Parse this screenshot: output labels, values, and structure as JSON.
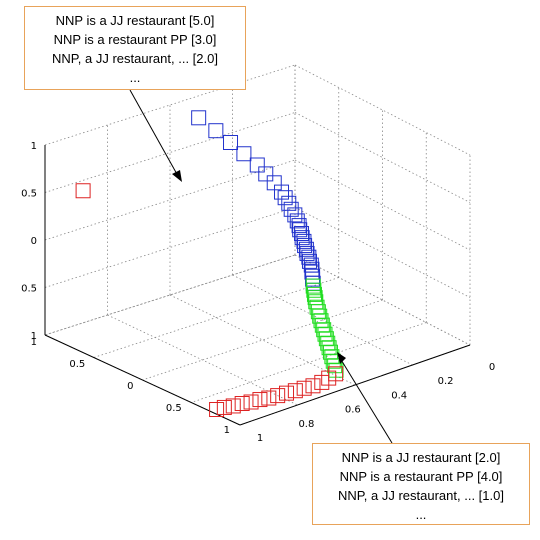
{
  "chart_data": {
    "type": "scatter3d",
    "title": "",
    "marker": "square",
    "grid": true,
    "x_ticks": [
      "0",
      "0.2",
      "0.4",
      "0.6",
      "0.8",
      "1"
    ],
    "y_ticks": [
      "1",
      "0.5",
      "0",
      "0.5",
      "1"
    ],
    "z_ticks": [
      "1",
      "0.5",
      "0",
      "0.5",
      "1"
    ],
    "series": [
      {
        "color": "#2233cc",
        "points": [
          [
            0.02,
            0.2,
            0.8
          ],
          [
            0.08,
            0.25,
            0.7
          ],
          [
            0.14,
            0.28,
            0.62
          ],
          [
            0.2,
            0.3,
            0.55
          ],
          [
            0.26,
            0.32,
            0.48
          ],
          [
            0.3,
            0.33,
            0.42
          ],
          [
            0.34,
            0.34,
            0.36
          ],
          [
            0.38,
            0.34,
            0.3
          ],
          [
            0.4,
            0.34,
            0.26
          ],
          [
            0.42,
            0.34,
            0.22
          ],
          [
            0.44,
            0.33,
            0.18
          ],
          [
            0.46,
            0.33,
            0.14
          ],
          [
            0.48,
            0.32,
            0.1
          ],
          [
            0.49,
            0.32,
            0.06
          ],
          [
            0.5,
            0.31,
            0.03
          ],
          [
            0.51,
            0.31,
            0.0
          ],
          [
            0.52,
            0.3,
            -0.03
          ],
          [
            0.53,
            0.3,
            -0.06
          ],
          [
            0.54,
            0.29,
            -0.09
          ],
          [
            0.55,
            0.29,
            -0.12
          ],
          [
            0.56,
            0.28,
            -0.15
          ],
          [
            0.57,
            0.28,
            -0.18
          ],
          [
            0.58,
            0.27,
            -0.21
          ],
          [
            0.59,
            0.27,
            -0.24
          ],
          [
            0.6,
            0.26,
            -0.27
          ],
          [
            0.6,
            0.26,
            -0.3
          ],
          [
            0.61,
            0.25,
            -0.33
          ],
          [
            0.61,
            0.25,
            -0.36
          ],
          [
            0.62,
            0.24,
            -0.39
          ]
        ]
      },
      {
        "color": "#22dd22",
        "points": [
          [
            0.62,
            0.24,
            -0.42
          ],
          [
            0.63,
            0.23,
            -0.45
          ],
          [
            0.64,
            0.22,
            -0.48
          ],
          [
            0.65,
            0.21,
            -0.5
          ],
          [
            0.66,
            0.2,
            -0.53
          ],
          [
            0.68,
            0.18,
            -0.56
          ],
          [
            0.7,
            0.16,
            -0.58
          ],
          [
            0.72,
            0.14,
            -0.6
          ],
          [
            0.74,
            0.12,
            -0.62
          ],
          [
            0.76,
            0.1,
            -0.64
          ],
          [
            0.78,
            0.08,
            -0.66
          ],
          [
            0.8,
            0.06,
            -0.68
          ],
          [
            0.82,
            0.04,
            -0.7
          ],
          [
            0.84,
            0.02,
            -0.72
          ],
          [
            0.86,
            0.0,
            -0.74
          ],
          [
            0.88,
            -0.02,
            -0.76
          ],
          [
            0.9,
            -0.04,
            -0.78
          ],
          [
            0.92,
            -0.06,
            -0.8
          ],
          [
            0.94,
            -0.08,
            -0.82
          ],
          [
            0.96,
            -0.1,
            -0.84
          ]
        ]
      },
      {
        "color": "#dd2222",
        "points": [
          [
            0.97,
            -0.12,
            -0.86
          ],
          [
            0.97,
            -0.18,
            -0.88
          ],
          [
            0.97,
            -0.24,
            -0.9
          ],
          [
            0.96,
            -0.3,
            -0.92
          ],
          [
            0.95,
            -0.36,
            -0.93
          ],
          [
            0.94,
            -0.42,
            -0.94
          ],
          [
            0.93,
            -0.48,
            -0.95
          ],
          [
            0.92,
            -0.54,
            -0.96
          ],
          [
            0.91,
            -0.6,
            -0.97
          ],
          [
            0.9,
            -0.66,
            -0.97
          ],
          [
            0.89,
            -0.72,
            -0.98
          ],
          [
            0.88,
            -0.78,
            -0.98
          ],
          [
            0.87,
            -0.84,
            -0.99
          ],
          [
            0.86,
            -0.9,
            -0.99
          ],
          [
            0.85,
            -0.95,
            -1.0
          ],
          [
            0.1,
            -0.85,
            0.55
          ]
        ]
      }
    ]
  },
  "annotations": {
    "top": {
      "lines": [
        "NNP is a JJ restaurant [5.0]",
        "NNP is a restaurant PP [3.0]",
        "NNP, a JJ restaurant, ... [2.0]",
        "..."
      ]
    },
    "bottom": {
      "lines": [
        "NNP is a JJ restaurant [2.0]",
        "NNP is a restaurant PP [4.0]",
        "NNP, a JJ restaurant, ... [1.0]",
        "..."
      ]
    }
  },
  "colors": {
    "annotation_border": "#e8a35a",
    "grid": "#888888"
  }
}
